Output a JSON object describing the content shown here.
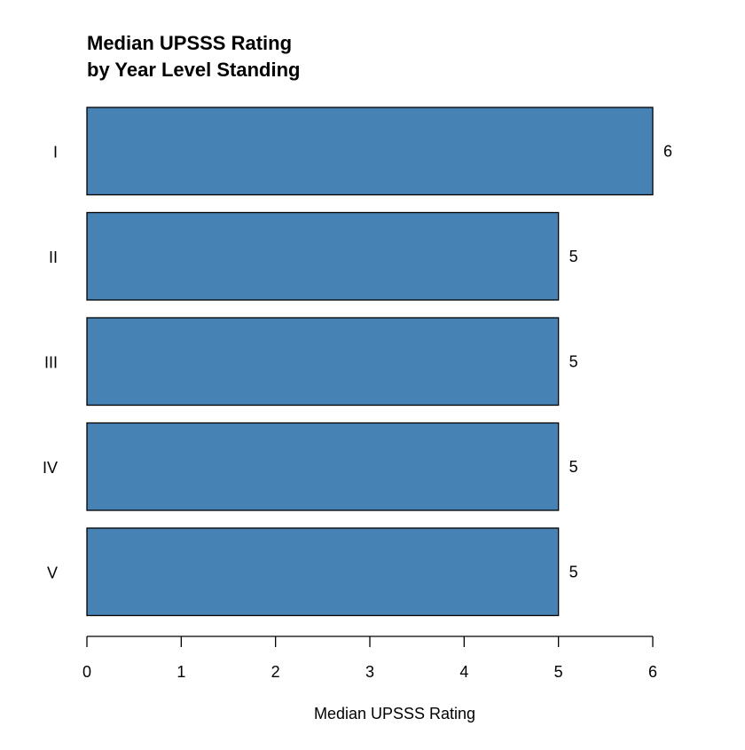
{
  "chart_data": {
    "type": "bar",
    "orientation": "horizontal",
    "title_lines": [
      "Median UPSSS Rating",
      "by Year Level Standing"
    ],
    "categories": [
      "I",
      "II",
      "III",
      "IV",
      "V"
    ],
    "values": [
      6,
      5,
      5,
      5,
      5
    ],
    "data_labels": [
      "6",
      "5",
      "5",
      "5",
      "5"
    ],
    "xlabel": "Median UPSSS Rating",
    "ylabel": "",
    "xlim": [
      0,
      6
    ],
    "x_ticks": [
      "0",
      "1",
      "2",
      "3",
      "4",
      "5",
      "6"
    ],
    "grid": false,
    "legend": "none",
    "bar_color": "#4682B4",
    "bar_edge_color": "#000000"
  }
}
